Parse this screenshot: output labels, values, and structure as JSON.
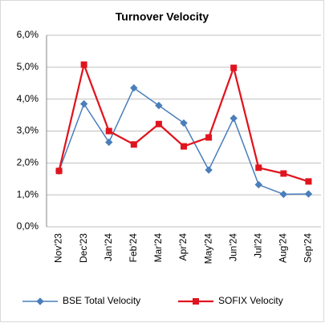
{
  "chart_data": {
    "type": "line",
    "title": "Turnover Velocity",
    "categories": [
      "Nov'23",
      "Dec'23",
      "Jan'24",
      "Feb'24",
      "Mar'24",
      "Apr'24",
      "May'24",
      "Jun'24",
      "Jul'24",
      "Aug'24",
      "Sep'24"
    ],
    "series": [
      {
        "name": "BSE Total Velocity",
        "color": "#4a7ebb",
        "marker": "diamond",
        "values": [
          1.75,
          3.85,
          2.65,
          4.35,
          3.8,
          3.25,
          1.78,
          3.4,
          1.32,
          1.02,
          1.03
        ]
      },
      {
        "name": "SOFIX Velocity",
        "color": "#e0141e",
        "marker": "square",
        "values": [
          1.75,
          5.08,
          3.0,
          2.58,
          3.22,
          2.52,
          2.8,
          4.98,
          1.85,
          1.67,
          1.42
        ]
      }
    ],
    "ylim": [
      0,
      6
    ],
    "yticks": [
      {
        "value": 0,
        "label": "0,0%"
      },
      {
        "value": 1,
        "label": "1,0%"
      },
      {
        "value": 2,
        "label": "2,0%"
      },
      {
        "value": 3,
        "label": "3,0%"
      },
      {
        "value": 4,
        "label": "4,0%"
      },
      {
        "value": 5,
        "label": "5,0%"
      },
      {
        "value": 6,
        "label": "6,0%"
      }
    ],
    "grid": true,
    "legend": "bottom"
  }
}
